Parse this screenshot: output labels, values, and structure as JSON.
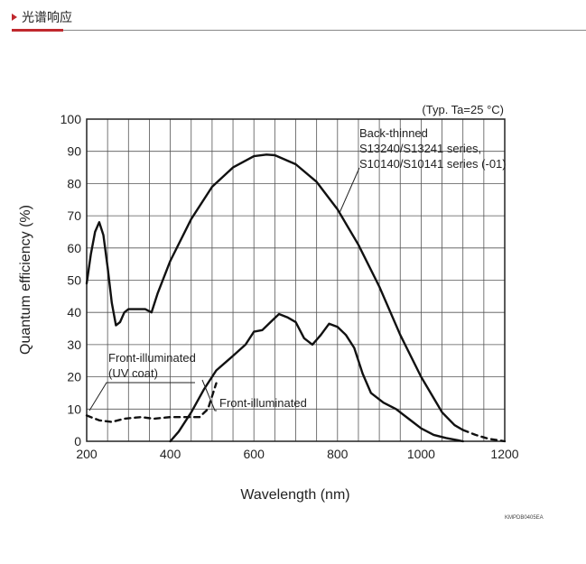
{
  "header": {
    "title": "光谱响应"
  },
  "chart_data": {
    "type": "line",
    "condition_note": "(Typ. Ta=25 °C)",
    "xlabel": "Wavelength (nm)",
    "ylabel": "Quantum efficiency (%)",
    "xlim": [
      200,
      1200
    ],
    "ylim": [
      0,
      100
    ],
    "x_ticks": [
      "200",
      "400",
      "600",
      "800",
      "1000",
      "1200"
    ],
    "y_ticks": [
      "0",
      "10",
      "20",
      "30",
      "40",
      "50",
      "60",
      "70",
      "80",
      "90",
      "100"
    ],
    "grid": true,
    "annotations": {
      "back_thinned": [
        "Back-thinned",
        "S13240/S13241 series,",
        "S10140/S10141 series (-01)"
      ],
      "front_uv": [
        "Front-illuminated",
        "(UV coat)"
      ],
      "front": [
        "Front-illuminated"
      ]
    },
    "series": [
      {
        "id": "back_thinned",
        "style": "solid",
        "points": [
          [
            200,
            49
          ],
          [
            210,
            58
          ],
          [
            220,
            65
          ],
          [
            230,
            68
          ],
          [
            240,
            64
          ],
          [
            250,
            54
          ],
          [
            260,
            43
          ],
          [
            270,
            36
          ],
          [
            280,
            37
          ],
          [
            290,
            40
          ],
          [
            300,
            41
          ],
          [
            320,
            41
          ],
          [
            340,
            41
          ],
          [
            355,
            40
          ],
          [
            370,
            46
          ],
          [
            400,
            56
          ],
          [
            450,
            69
          ],
          [
            500,
            79
          ],
          [
            550,
            85
          ],
          [
            600,
            88.5
          ],
          [
            630,
            89
          ],
          [
            650,
            88.8
          ],
          [
            700,
            86
          ],
          [
            750,
            80.5
          ],
          [
            800,
            72
          ],
          [
            850,
            61
          ],
          [
            900,
            48
          ],
          [
            950,
            33
          ],
          [
            1000,
            20
          ],
          [
            1050,
            9
          ],
          [
            1080,
            5
          ],
          [
            1100,
            3.5
          ]
        ]
      },
      {
        "id": "back_thinned_ext",
        "style": "dashed",
        "points": [
          [
            1100,
            3.5
          ],
          [
            1130,
            2
          ],
          [
            1160,
            0.8
          ],
          [
            1200,
            0
          ]
        ]
      },
      {
        "id": "front_uv",
        "style": "dashed",
        "points": [
          [
            200,
            8
          ],
          [
            230,
            6.5
          ],
          [
            260,
            6
          ],
          [
            290,
            7
          ],
          [
            330,
            7.5
          ],
          [
            360,
            7
          ],
          [
            400,
            7.5
          ],
          [
            440,
            7.5
          ],
          [
            470,
            7.5
          ],
          [
            490,
            10
          ],
          [
            510,
            18
          ]
        ]
      },
      {
        "id": "front",
        "style": "solid",
        "points": [
          [
            400,
            0
          ],
          [
            420,
            3
          ],
          [
            450,
            9
          ],
          [
            480,
            16
          ],
          [
            510,
            22
          ],
          [
            550,
            26.5
          ],
          [
            580,
            30
          ],
          [
            600,
            34
          ],
          [
            620,
            34.5
          ],
          [
            640,
            37
          ],
          [
            660,
            39.5
          ],
          [
            680,
            38.5
          ],
          [
            700,
            37
          ],
          [
            720,
            32
          ],
          [
            740,
            30
          ],
          [
            760,
            33
          ],
          [
            780,
            36.5
          ],
          [
            800,
            35.5
          ],
          [
            820,
            33
          ],
          [
            840,
            29
          ],
          [
            860,
            21
          ],
          [
            880,
            15
          ],
          [
            910,
            12
          ],
          [
            940,
            10
          ],
          [
            970,
            7
          ],
          [
            1000,
            4
          ],
          [
            1030,
            2
          ],
          [
            1060,
            1
          ],
          [
            1100,
            0
          ]
        ]
      }
    ]
  },
  "figure_code": "KMPDB0405EA"
}
